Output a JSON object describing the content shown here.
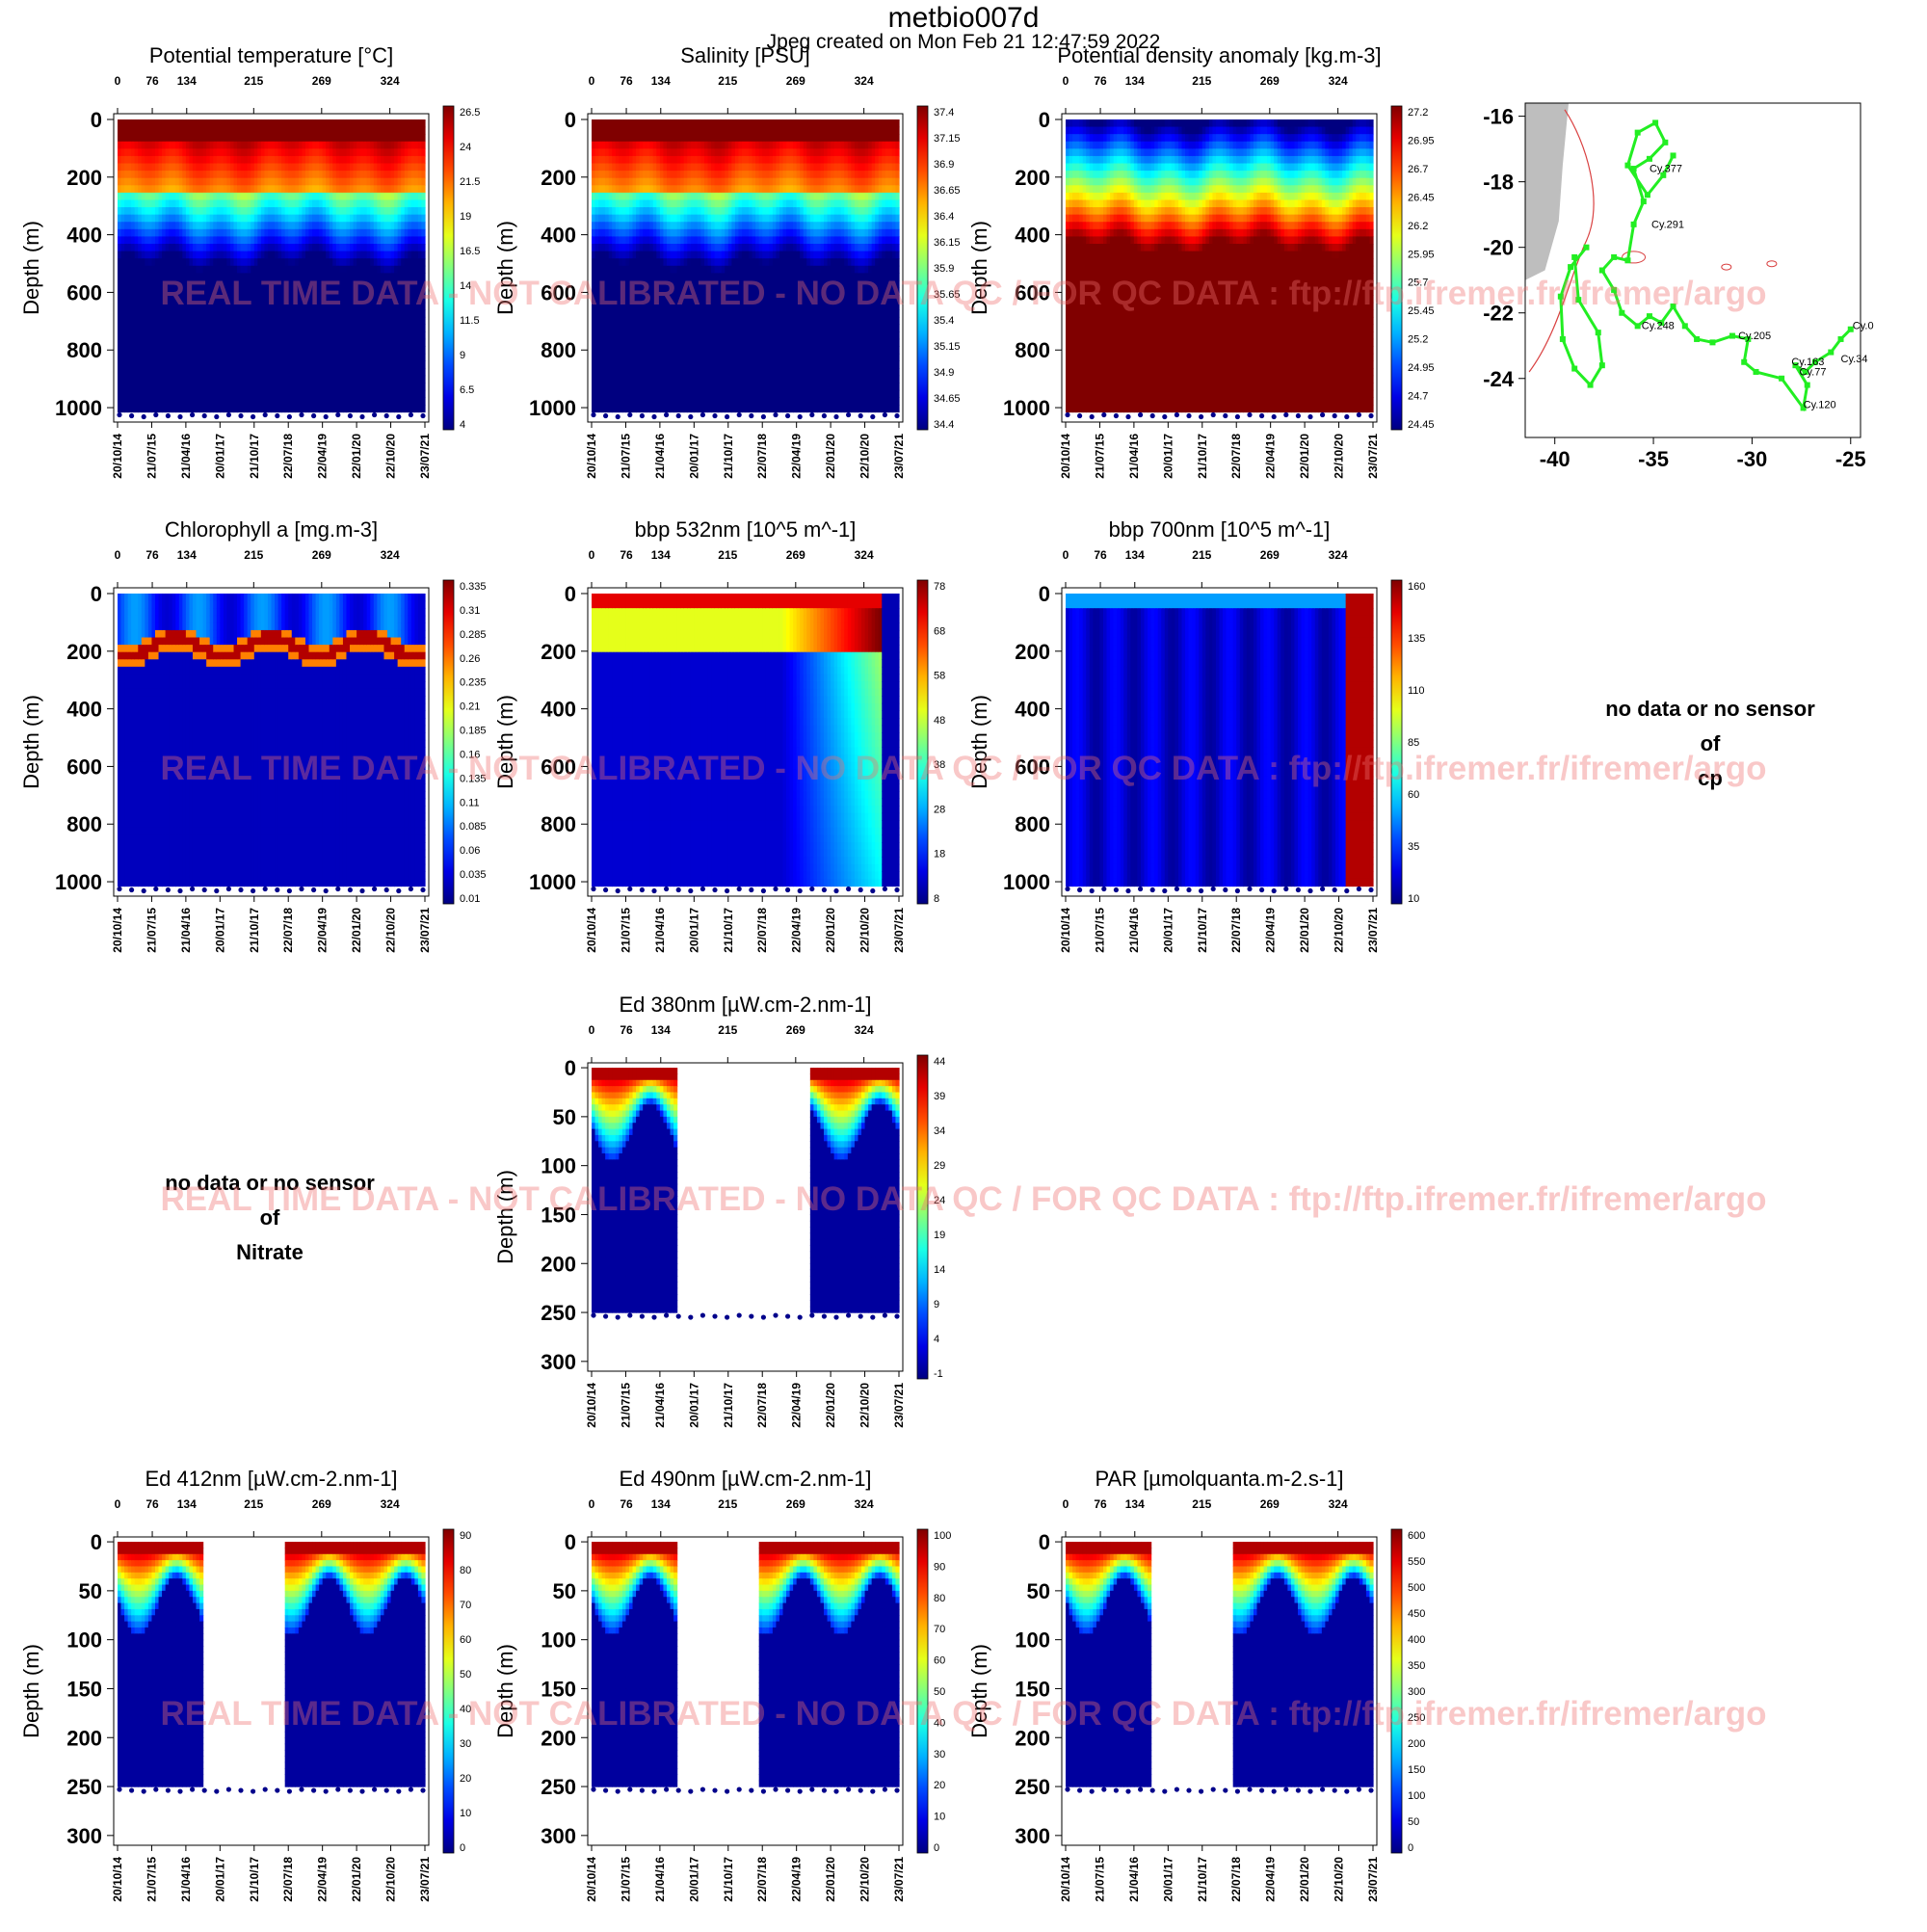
{
  "header": {
    "title": "metbio007d",
    "subtitle": "Jpeg created on  Mon Feb 21 12:47:59 2022"
  },
  "watermark": "REAL TIME DATA - NOT CALIBRATED - NO DATA QC  /  FOR QC DATA : ftp://ftp.ifremer.fr/ifremer/argo",
  "colors": {
    "map_track": "#22ee22",
    "map_coast": "#d94040",
    "map_land": "#bebebe"
  },
  "chart_data": [
    {
      "id": "temp",
      "type": "heatmap",
      "title": "Potential temperature [°C]",
      "ylabel": "Depth (m)",
      "ylim": [
        1050,
        -20
      ],
      "yticks": [
        0,
        200,
        400,
        600,
        800,
        1000
      ],
      "top_ticks": [
        "0",
        "76",
        "134",
        "215",
        "269",
        "324"
      ],
      "x_dates": [
        "20/10/14",
        "21/07/15",
        "21/04/16",
        "20/01/17",
        "21/10/17",
        "22/07/18",
        "22/04/19",
        "22/01/20",
        "22/10/20",
        "23/07/21"
      ],
      "colorbar": [
        "26.5",
        "24",
        "21.5",
        "19",
        "16.5",
        "14",
        "11.5",
        "9",
        "6.5",
        "4"
      ],
      "range": [
        4,
        26.5
      ]
    },
    {
      "id": "sal",
      "type": "heatmap",
      "title": "Salinity [PSU]",
      "ylabel": "Depth (m)",
      "ylim": [
        1050,
        -20
      ],
      "yticks": [
        0,
        200,
        400,
        600,
        800,
        1000
      ],
      "top_ticks": [
        "0",
        "76",
        "134",
        "215",
        "269",
        "324"
      ],
      "x_dates": [
        "20/10/14",
        "21/07/15",
        "21/04/16",
        "20/01/17",
        "21/10/17",
        "22/07/18",
        "22/04/19",
        "22/01/20",
        "22/10/20",
        "23/07/21"
      ],
      "colorbar": [
        "37.4",
        "37.15",
        "36.9",
        "36.65",
        "36.4",
        "36.15",
        "35.9",
        "35.65",
        "35.4",
        "35.15",
        "34.9",
        "34.65",
        "34.4"
      ],
      "range": [
        34.4,
        37.4
      ]
    },
    {
      "id": "dens",
      "type": "heatmap",
      "title": "Potential density anomaly [kg.m-3]",
      "ylabel": "Depth (m)",
      "ylim": [
        1050,
        -20
      ],
      "yticks": [
        0,
        200,
        400,
        600,
        800,
        1000
      ],
      "top_ticks": [
        "0",
        "76",
        "134",
        "215",
        "269",
        "324"
      ],
      "x_dates": [
        "20/10/14",
        "21/07/15",
        "21/04/16",
        "20/01/17",
        "21/10/17",
        "22/07/18",
        "22/04/19",
        "22/01/20",
        "22/10/20",
        "23/07/21"
      ],
      "colorbar": [
        "27.2",
        "26.95",
        "26.7",
        "26.45",
        "26.2",
        "25.95",
        "25.7",
        "25.45",
        "25.2",
        "24.95",
        "24.7",
        "24.45"
      ],
      "range": [
        24.45,
        27.2
      ]
    },
    {
      "id": "chl",
      "type": "heatmap",
      "title": "Chlorophyll a [mg.m-3]",
      "ylabel": "Depth (m)",
      "ylim": [
        1050,
        -20
      ],
      "yticks": [
        0,
        200,
        400,
        600,
        800,
        1000
      ],
      "top_ticks": [
        "0",
        "76",
        "134",
        "215",
        "269",
        "324"
      ],
      "x_dates": [
        "20/10/14",
        "21/07/15",
        "21/04/16",
        "20/01/17",
        "21/10/17",
        "22/07/18",
        "22/04/19",
        "22/01/20",
        "22/10/20",
        "23/07/21"
      ],
      "colorbar": [
        "0.335",
        "0.31",
        "0.285",
        "0.26",
        "0.235",
        "0.21",
        "0.185",
        "0.16",
        "0.135",
        "0.11",
        "0.085",
        "0.06",
        "0.035",
        "0.01"
      ],
      "range": [
        0.01,
        0.335
      ]
    },
    {
      "id": "bbp532",
      "type": "heatmap",
      "title": "bbp 532nm [10^5 m^-1]",
      "ylabel": "Depth (m)",
      "ylim": [
        1050,
        -20
      ],
      "yticks": [
        0,
        200,
        400,
        600,
        800,
        1000
      ],
      "top_ticks": [
        "0",
        "76",
        "134",
        "215",
        "269",
        "324"
      ],
      "x_dates": [
        "20/10/14",
        "21/07/15",
        "21/04/16",
        "20/01/17",
        "21/10/17",
        "22/07/18",
        "22/04/19",
        "22/01/20",
        "22/10/20",
        "23/07/21"
      ],
      "colorbar": [
        "78",
        "68",
        "58",
        "48",
        "38",
        "28",
        "18",
        "8"
      ],
      "range": [
        8,
        78
      ]
    },
    {
      "id": "bbp700",
      "type": "heatmap",
      "title": "bbp 700nm [10^5 m^-1]",
      "ylabel": "Depth (m)",
      "ylim": [
        1050,
        -20
      ],
      "yticks": [
        0,
        200,
        400,
        600,
        800,
        1000
      ],
      "top_ticks": [
        "0",
        "76",
        "134",
        "215",
        "269",
        "324"
      ],
      "x_dates": [
        "20/10/14",
        "21/07/15",
        "21/04/16",
        "20/01/17",
        "21/10/17",
        "22/07/18",
        "22/04/19",
        "22/01/20",
        "22/10/20",
        "23/07/21"
      ],
      "colorbar": [
        "160",
        "135",
        "110",
        "85",
        "60",
        "35",
        "10"
      ],
      "range": [
        10,
        160
      ]
    },
    {
      "id": "ed380",
      "type": "heatmap",
      "title": "Ed 380nm [µW.cm-2.nm-1]",
      "ylabel": "Depth (m)",
      "ylim": [
        310,
        -5
      ],
      "yticks": [
        0,
        50,
        100,
        150,
        200,
        250,
        300
      ],
      "top_ticks": [
        "0",
        "76",
        "134",
        "215",
        "269",
        "324"
      ],
      "x_dates": [
        "20/10/14",
        "21/07/15",
        "21/04/16",
        "20/01/17",
        "21/10/17",
        "22/07/18",
        "22/04/19",
        "22/01/20",
        "22/10/20",
        "23/07/21"
      ],
      "colorbar": [
        "44",
        "39",
        "34",
        "29",
        "24",
        "19",
        "14",
        "9",
        "4",
        "-1"
      ],
      "range": [
        -1,
        44
      ]
    },
    {
      "id": "ed412",
      "type": "heatmap",
      "title": "Ed 412nm [µW.cm-2.nm-1]",
      "ylabel": "Depth (m)",
      "ylim": [
        310,
        -5
      ],
      "yticks": [
        0,
        50,
        100,
        150,
        200,
        250,
        300
      ],
      "top_ticks": [
        "0",
        "76",
        "134",
        "215",
        "269",
        "324"
      ],
      "x_dates": [
        "20/10/14",
        "21/07/15",
        "21/04/16",
        "20/01/17",
        "21/10/17",
        "22/07/18",
        "22/04/19",
        "22/01/20",
        "22/10/20",
        "23/07/21"
      ],
      "colorbar": [
        "90",
        "80",
        "70",
        "60",
        "50",
        "40",
        "30",
        "20",
        "10",
        "0"
      ],
      "range": [
        0,
        90
      ]
    },
    {
      "id": "ed490",
      "type": "heatmap",
      "title": "Ed 490nm [µW.cm-2.nm-1]",
      "ylabel": "Depth (m)",
      "ylim": [
        310,
        -5
      ],
      "yticks": [
        0,
        50,
        100,
        150,
        200,
        250,
        300
      ],
      "top_ticks": [
        "0",
        "76",
        "134",
        "215",
        "269",
        "324"
      ],
      "x_dates": [
        "20/10/14",
        "21/07/15",
        "21/04/16",
        "20/01/17",
        "21/10/17",
        "22/07/18",
        "22/04/19",
        "22/01/20",
        "22/10/20",
        "23/07/21"
      ],
      "colorbar": [
        "100",
        "90",
        "80",
        "70",
        "60",
        "50",
        "40",
        "30",
        "20",
        "10",
        "0"
      ],
      "range": [
        0,
        100
      ]
    },
    {
      "id": "par",
      "type": "heatmap",
      "title": "PAR [µmolquanta.m-2.s-1]",
      "ylabel": "Depth (m)",
      "ylim": [
        310,
        -5
      ],
      "yticks": [
        0,
        50,
        100,
        150,
        200,
        250,
        300
      ],
      "top_ticks": [
        "0",
        "76",
        "134",
        "215",
        "269",
        "324"
      ],
      "x_dates": [
        "20/10/14",
        "21/07/15",
        "21/04/16",
        "20/01/17",
        "21/10/17",
        "22/07/18",
        "22/04/19",
        "22/01/20",
        "22/10/20",
        "23/07/21"
      ],
      "colorbar": [
        "600",
        "550",
        "500",
        "450",
        "400",
        "350",
        "300",
        "250",
        "200",
        "150",
        "100",
        "50",
        "0"
      ],
      "range": [
        0,
        600
      ]
    },
    {
      "id": "map",
      "type": "scatter",
      "title": "",
      "xlim": [
        -41.5,
        -24.5
      ],
      "ylim": [
        -25.8,
        -15.6
      ],
      "xticks": [
        -40,
        -35,
        -30,
        -25
      ],
      "yticks": [
        -16,
        -18,
        -20,
        -22,
        -24
      ],
      "labels": [
        {
          "text": "Cy.377",
          "x": -35.2,
          "y": -17.7
        },
        {
          "text": "Cy.291",
          "x": -35.1,
          "y": -19.4
        },
        {
          "text": "Cy.248",
          "x": -35.6,
          "y": -22.5
        },
        {
          "text": "Cy.205",
          "x": -30.7,
          "y": -22.8
        },
        {
          "text": "Cy.0",
          "x": -24.9,
          "y": -22.5
        },
        {
          "text": "Cy.34",
          "x": -25.5,
          "y": -23.5
        },
        {
          "text": "Cy.163",
          "x": -28.0,
          "y": -23.6
        },
        {
          "text": "Cy.77",
          "x": -27.6,
          "y": -23.9
        },
        {
          "text": "Cy.120",
          "x": -27.4,
          "y": -24.9
        }
      ]
    }
  ],
  "no_data": {
    "cp": {
      "line1": "no data or no sensor",
      "line2": "of",
      "line3": "cp"
    },
    "nitrate": {
      "line1": "no data or no sensor",
      "line2": "of",
      "line3": "Nitrate"
    }
  }
}
